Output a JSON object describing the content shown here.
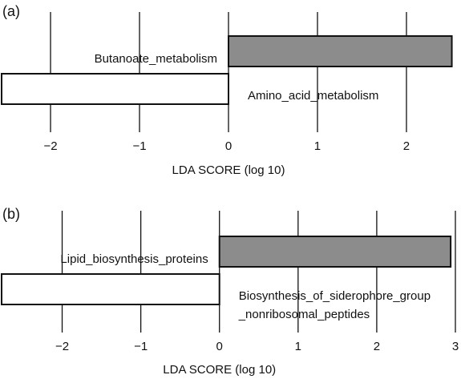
{
  "chart_data": [
    {
      "type": "bar",
      "orientation": "horizontal",
      "panel_label": "(a)",
      "categories": [
        "Butanoate_metabolism",
        "Amino_acid_metabolism"
      ],
      "values": [
        2.51,
        -2.55
      ],
      "colors": [
        "#8c8c8c",
        "#ffffff"
      ],
      "xlim": [
        -2.55,
        2.55
      ],
      "xticks": [
        {
          "value": -2,
          "label": "−2"
        },
        {
          "value": -1,
          "label": "−1"
        },
        0,
        1,
        2
      ],
      "xlabel": "LDA SCORE (log 10)"
    },
    {
      "type": "bar",
      "orientation": "horizontal",
      "panel_label": "(b)",
      "categories": [
        "Lipid_biosynthesis_proteins",
        [
          "Biosynthesis_of_siderophore_group",
          "_nonribosomal_peptides"
        ]
      ],
      "values": [
        2.94,
        -2.77
      ],
      "colors": [
        "#8c8c8c",
        "#ffffff"
      ],
      "xlim": [
        -2.77,
        3.0
      ],
      "xticks": [
        {
          "value": -2,
          "label": "−2"
        },
        {
          "value": -1,
          "label": "−1"
        },
        0,
        1,
        2,
        3
      ],
      "xlabel": "LDA SCORE (log 10)"
    }
  ]
}
